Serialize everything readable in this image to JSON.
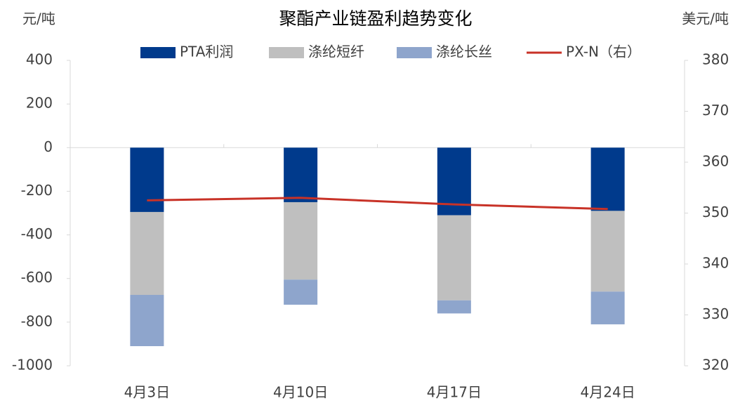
{
  "chart_data": {
    "type": "bar",
    "stacked": true,
    "title": "聚酯产业链盈利趋势变化",
    "y_label": "元/吨",
    "y2_label": "美元/吨",
    "categories": [
      "4月3日",
      "4月10日",
      "4月17日",
      "4月24日"
    ],
    "series": [
      {
        "name": "PTA利润",
        "color": "#003a8c",
        "values": [
          -295,
          -250,
          -310,
          -290
        ]
      },
      {
        "name": "涤纶短纤",
        "color": "#bfbfbf",
        "values": [
          -380,
          -355,
          -390,
          -370
        ]
      },
      {
        "name": "涤纶长丝",
        "color": "#8ea5cc",
        "values": [
          -235,
          -115,
          -60,
          -150
        ]
      },
      {
        "name": "PX-N（右）",
        "color": "#c83227",
        "type": "line",
        "axis": "y2",
        "values": [
          352.5,
          353,
          351.7,
          350.8
        ]
      }
    ],
    "ylim": [
      -1000,
      400
    ],
    "yticks": [
      -1000,
      -800,
      -600,
      -400,
      -200,
      0,
      200,
      400
    ],
    "y2lim": [
      320,
      380
    ],
    "y2ticks": [
      320,
      330,
      340,
      350,
      360,
      370,
      380
    ],
    "legend": "top",
    "grid": false
  }
}
